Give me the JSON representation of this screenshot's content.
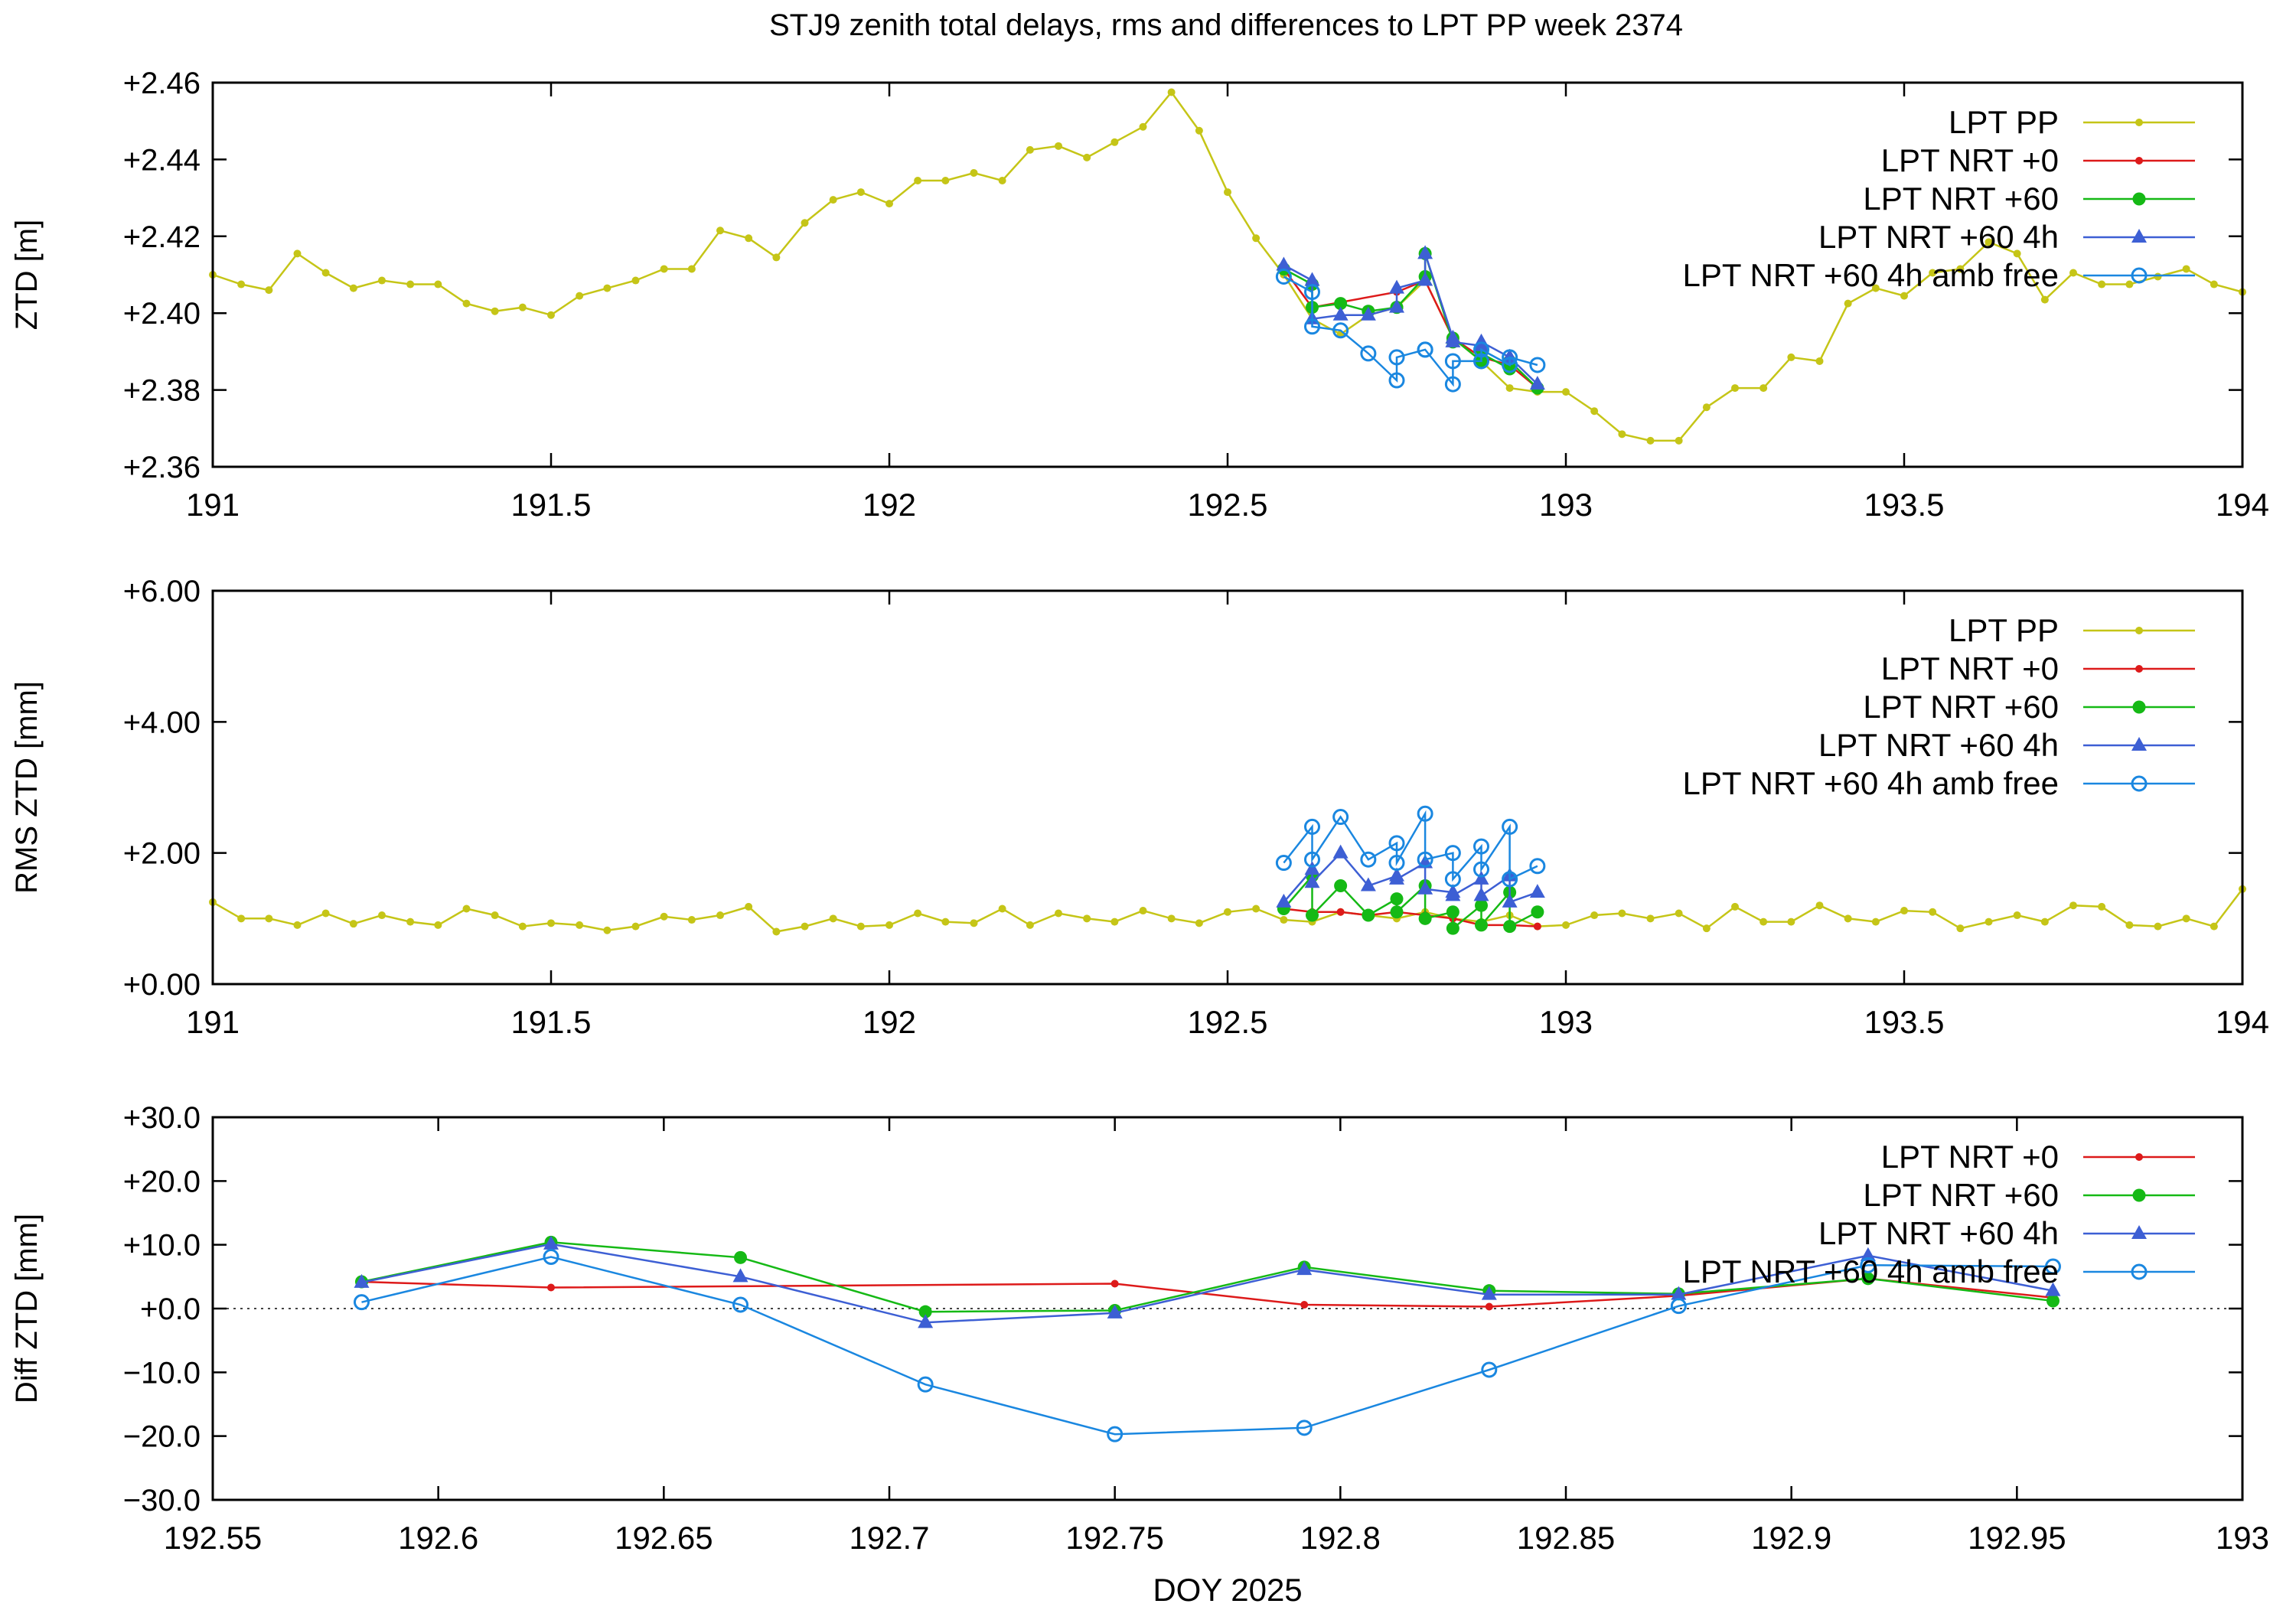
{
  "figure": {
    "title": "STJ9 zenith total delays, rms and differences to LPT PP week 2374"
  },
  "series_styles": [
    {
      "name": "LPT PP",
      "color": "#c5c517",
      "marker": "dot"
    },
    {
      "name": "LPT NRT +0",
      "color": "#dd1a1a",
      "marker": "dot"
    },
    {
      "name": "LPT NRT +60",
      "color": "#15b915",
      "marker": "circle"
    },
    {
      "name": "LPT NRT +60 4h",
      "color": "#3d5fd4",
      "marker": "triangle"
    },
    {
      "name": "LPT NRT +60 4h amb free",
      "color": "#1a87e0",
      "marker": "open-circle"
    }
  ],
  "chart_data": [
    {
      "type": "line",
      "ylabel": "ZTD [m]",
      "xlim": [
        191,
        194
      ],
      "ylim": [
        2.36,
        2.46
      ],
      "xticks": [
        191,
        191.5,
        192,
        192.5,
        193,
        193.5,
        194
      ],
      "xtick_labels": [
        "191",
        "191.5",
        "192",
        "192.5",
        "193",
        "193.5",
        "194"
      ],
      "yticks": [
        2.36,
        2.38,
        2.4,
        2.42,
        2.44,
        2.46
      ],
      "ytick_labels": [
        "+2.36",
        "+2.38",
        "+2.40",
        "+2.42",
        "+2.44",
        "+2.46"
      ],
      "legend_position": "top-right",
      "legend": [
        "LPT PP",
        "LPT NRT +0",
        "LPT NRT +60",
        "LPT NRT +60 4h",
        "LPT NRT +60 4h amb free"
      ],
      "series": [
        {
          "name": "LPT PP",
          "x": [
            191.0,
            191.042,
            191.083,
            191.125,
            191.167,
            191.208,
            191.25,
            191.292,
            191.333,
            191.375,
            191.417,
            191.458,
            191.5,
            191.542,
            191.583,
            191.625,
            191.667,
            191.708,
            191.75,
            191.792,
            191.833,
            191.875,
            191.917,
            191.958,
            192.0,
            192.042,
            192.083,
            192.125,
            192.167,
            192.208,
            192.25,
            192.292,
            192.333,
            192.375,
            192.417,
            192.458,
            192.5,
            192.542,
            192.583,
            192.625,
            192.667,
            192.708,
            192.75,
            192.792,
            192.833,
            192.875,
            192.917,
            192.958,
            193.0,
            193.042,
            193.083,
            193.125,
            193.167,
            193.208,
            193.25,
            193.292,
            193.333,
            193.375,
            193.417,
            193.458,
            193.5,
            193.542,
            193.583,
            193.625,
            193.667,
            193.708,
            193.75,
            193.792,
            193.833,
            193.875,
            193.917,
            193.958,
            194.0
          ],
          "y": [
            2.41,
            2.4075,
            2.406,
            2.4155,
            2.4105,
            2.4065,
            2.4085,
            2.4075,
            2.4075,
            2.4025,
            2.4005,
            2.4015,
            2.3995,
            2.4045,
            2.4065,
            2.4085,
            2.4115,
            2.4115,
            2.4215,
            2.4195,
            2.4145,
            2.4235,
            2.4295,
            2.4315,
            2.4285,
            2.4345,
            2.4345,
            2.4365,
            2.4345,
            2.4425,
            2.4435,
            2.4405,
            2.4445,
            2.4485,
            2.4575,
            2.4475,
            2.4315,
            2.4195,
            2.41,
            2.3985,
            2.3945,
            2.3995,
            2.4015,
            2.4085,
            2.3935,
            2.3875,
            2.3805,
            2.3795,
            2.3795,
            2.3745,
            2.3685,
            2.3668,
            2.3668,
            2.3755,
            2.3805,
            2.3805,
            2.3885,
            2.3875,
            2.4025,
            2.4065,
            2.4045,
            2.4105,
            2.4115,
            2.4185,
            2.4155,
            2.4035,
            2.4105,
            2.4075,
            2.4075,
            2.4095,
            2.4115,
            2.4075,
            2.4055
          ]
        },
        {
          "name": "LPT NRT +0",
          "x": [
            192.583,
            192.625,
            192.75,
            192.792,
            192.833,
            192.875,
            192.917,
            192.958
          ],
          "y": [
            2.4115,
            2.4015,
            2.4055,
            2.4085,
            2.3935,
            2.3885,
            2.3865,
            2.3805
          ]
        },
        {
          "name": "LPT NRT +60",
          "x": [
            192.583,
            192.625,
            192.625,
            192.667,
            192.708,
            192.75,
            192.75,
            192.792,
            192.792,
            192.833,
            192.833,
            192.875,
            192.875,
            192.917,
            192.917,
            192.958
          ],
          "y": [
            2.4115,
            2.4075,
            2.4015,
            2.4025,
            2.4005,
            2.4015,
            2.4015,
            2.4095,
            2.4155,
            2.3925,
            2.3935,
            2.3875,
            2.3895,
            2.3855,
            2.3875,
            2.3805
          ]
        },
        {
          "name": "LPT NRT +60 4h",
          "x": [
            192.583,
            192.625,
            192.625,
            192.667,
            192.708,
            192.75,
            192.75,
            192.792,
            192.792,
            192.833,
            192.833,
            192.875,
            192.875,
            192.917,
            192.917,
            192.958
          ],
          "y": [
            2.4125,
            2.4085,
            2.3985,
            2.3995,
            2.3995,
            2.4015,
            2.4065,
            2.4085,
            2.4155,
            2.3935,
            2.3925,
            2.3915,
            2.3925,
            2.3885,
            2.3885,
            2.3815
          ]
        },
        {
          "name": "LPT NRT +60 4h amb free",
          "x": [
            192.583,
            192.625,
            192.625,
            192.667,
            192.708,
            192.75,
            192.75,
            192.792,
            192.792,
            192.833,
            192.833,
            192.875,
            192.875,
            192.917,
            192.917,
            192.958
          ],
          "y": [
            2.4095,
            2.4055,
            2.3965,
            2.3955,
            2.3895,
            2.3825,
            2.3885,
            2.3905,
            2.3905,
            2.3815,
            2.3875,
            2.3875,
            2.3905,
            2.3865,
            2.3885,
            2.3865
          ]
        }
      ]
    },
    {
      "type": "line",
      "ylabel": "RMS ZTD [mm]",
      "xlim": [
        191,
        194
      ],
      "ylim": [
        0,
        6
      ],
      "xticks": [
        191,
        191.5,
        192,
        192.5,
        193,
        193.5,
        194
      ],
      "xtick_labels": [
        "191",
        "191.5",
        "192",
        "192.5",
        "193",
        "193.5",
        "194"
      ],
      "yticks": [
        0,
        2,
        4,
        6
      ],
      "ytick_labels": [
        "+0.00",
        "+2.00",
        "+4.00",
        "+6.00"
      ],
      "legend_position": "top-right",
      "legend": [
        "LPT PP",
        "LPT NRT +0",
        "LPT NRT +60",
        "LPT NRT +60 4h",
        "LPT NRT +60 4h amb free"
      ],
      "series": [
        {
          "name": "LPT PP",
          "x": [
            191.0,
            191.042,
            191.083,
            191.125,
            191.167,
            191.208,
            191.25,
            191.292,
            191.333,
            191.375,
            191.417,
            191.458,
            191.5,
            191.542,
            191.583,
            191.625,
            191.667,
            191.708,
            191.75,
            191.792,
            191.833,
            191.875,
            191.917,
            191.958,
            192.0,
            192.042,
            192.083,
            192.125,
            192.167,
            192.208,
            192.25,
            192.292,
            192.333,
            192.375,
            192.417,
            192.458,
            192.5,
            192.542,
            192.583,
            192.625,
            192.667,
            192.708,
            192.75,
            192.792,
            192.833,
            192.875,
            192.917,
            192.958,
            193.0,
            193.042,
            193.083,
            193.125,
            193.167,
            193.208,
            193.25,
            193.292,
            193.333,
            193.375,
            193.417,
            193.458,
            193.5,
            193.542,
            193.583,
            193.625,
            193.667,
            193.708,
            193.75,
            193.792,
            193.833,
            193.875,
            193.917,
            193.958,
            194.0
          ],
          "y": [
            1.25,
            1.0,
            1.0,
            0.9,
            1.08,
            0.92,
            1.05,
            0.95,
            0.9,
            1.15,
            1.05,
            0.88,
            0.93,
            0.9,
            0.82,
            0.88,
            1.03,
            0.98,
            1.05,
            1.18,
            0.8,
            0.88,
            1.0,
            0.88,
            0.9,
            1.08,
            0.95,
            0.93,
            1.15,
            0.9,
            1.08,
            1.0,
            0.95,
            1.12,
            1.0,
            0.93,
            1.1,
            1.15,
            0.98,
            0.95,
            1.1,
            1.05,
            1.0,
            1.1,
            1.0,
            0.95,
            1.05,
            0.88,
            0.9,
            1.05,
            1.08,
            1.0,
            1.08,
            0.85,
            1.18,
            0.95,
            0.95,
            1.2,
            1.0,
            0.95,
            1.12,
            1.1,
            0.85,
            0.95,
            1.05,
            0.95,
            1.2,
            1.18,
            0.9,
            0.88,
            1.0,
            0.88,
            1.45
          ]
        },
        {
          "name": "LPT NRT +0",
          "x": [
            192.583,
            192.625,
            192.667,
            192.708,
            192.75,
            192.792,
            192.833,
            192.875,
            192.917,
            192.958
          ],
          "y": [
            1.15,
            1.1,
            1.1,
            1.05,
            1.1,
            1.05,
            1.0,
            0.9,
            0.9,
            0.88
          ]
        },
        {
          "name": "LPT NRT +60",
          "x": [
            192.583,
            192.625,
            192.625,
            192.667,
            192.708,
            192.75,
            192.75,
            192.792,
            192.792,
            192.833,
            192.833,
            192.875,
            192.875,
            192.917,
            192.917,
            192.958
          ],
          "y": [
            1.15,
            1.65,
            1.05,
            1.5,
            1.05,
            1.3,
            1.1,
            1.5,
            1.0,
            1.1,
            0.85,
            1.2,
            0.9,
            1.4,
            0.88,
            1.1
          ]
        },
        {
          "name": "LPT NRT +60 4h",
          "x": [
            192.583,
            192.625,
            192.625,
            192.667,
            192.708,
            192.75,
            192.75,
            192.792,
            192.792,
            192.833,
            192.833,
            192.875,
            192.875,
            192.917,
            192.917,
            192.958
          ],
          "y": [
            1.25,
            1.75,
            1.55,
            2.0,
            1.5,
            1.65,
            1.6,
            1.85,
            1.45,
            1.4,
            1.35,
            1.6,
            1.35,
            1.65,
            1.25,
            1.4
          ]
        },
        {
          "name": "LPT NRT +60 4h amb free",
          "x": [
            192.583,
            192.625,
            192.625,
            192.667,
            192.708,
            192.75,
            192.75,
            192.792,
            192.792,
            192.833,
            192.833,
            192.875,
            192.875,
            192.917,
            192.917,
            192.958
          ],
          "y": [
            1.85,
            2.4,
            1.9,
            2.55,
            1.9,
            2.15,
            1.85,
            2.6,
            1.9,
            2.0,
            1.6,
            2.1,
            1.75,
            2.4,
            1.6,
            1.8
          ]
        }
      ]
    },
    {
      "type": "line",
      "xlabel": "DOY 2025",
      "ylabel": "Diff ZTD [mm]",
      "xlim": [
        192.55,
        193
      ],
      "ylim": [
        -30,
        30
      ],
      "xticks": [
        192.55,
        192.6,
        192.65,
        192.7,
        192.75,
        192.8,
        192.85,
        192.9,
        192.95,
        193
      ],
      "xtick_labels": [
        "192.55",
        "192.6",
        "192.65",
        "192.7",
        "192.75",
        "192.8",
        "192.85",
        "192.9",
        "192.95",
        "193"
      ],
      "yticks": [
        -30,
        -20,
        -10,
        0,
        10,
        20,
        30
      ],
      "ytick_labels": [
        "−30.0",
        "−20.0",
        "−10.0",
        "+0.0",
        "+10.0",
        "+20.0",
        "+30.0"
      ],
      "zero_line": true,
      "legend_position": "top-right",
      "legend": [
        "LPT NRT +0",
        "LPT NRT +60",
        "LPT NRT +60 4h",
        "LPT NRT +60 4h amb free"
      ],
      "series": [
        {
          "name": "LPT NRT +0",
          "x": [
            192.583,
            192.625,
            192.75,
            192.792,
            192.833,
            192.875,
            192.917,
            192.958
          ],
          "y": [
            4.2,
            3.3,
            3.9,
            0.6,
            0.3,
            2.0,
            4.7,
            1.7
          ]
        },
        {
          "name": "LPT NRT +60",
          "x": [
            192.583,
            192.625,
            192.667,
            192.708,
            192.75,
            192.792,
            192.833,
            192.875,
            192.917,
            192.958
          ],
          "y": [
            4.2,
            10.4,
            8.0,
            -0.5,
            -0.3,
            6.5,
            2.8,
            2.3,
            4.7,
            1.2
          ]
        },
        {
          "name": "LPT NRT +60 4h",
          "x": [
            192.583,
            192.625,
            192.667,
            192.708,
            192.75,
            192.792,
            192.833,
            192.875,
            192.917,
            192.958
          ],
          "y": [
            4.1,
            10.1,
            5.0,
            -2.2,
            -0.7,
            6.1,
            2.2,
            2.2,
            8.3,
            2.8
          ]
        },
        {
          "name": "LPT NRT +60 4h amb free",
          "x": [
            192.583,
            192.625,
            192.667,
            192.708,
            192.75,
            192.792,
            192.833,
            192.875,
            192.917,
            192.958
          ],
          "y": [
            1.0,
            8.1,
            0.6,
            -11.9,
            -19.7,
            -18.7,
            -9.6,
            0.4,
            6.8,
            6.6
          ]
        }
      ]
    }
  ]
}
